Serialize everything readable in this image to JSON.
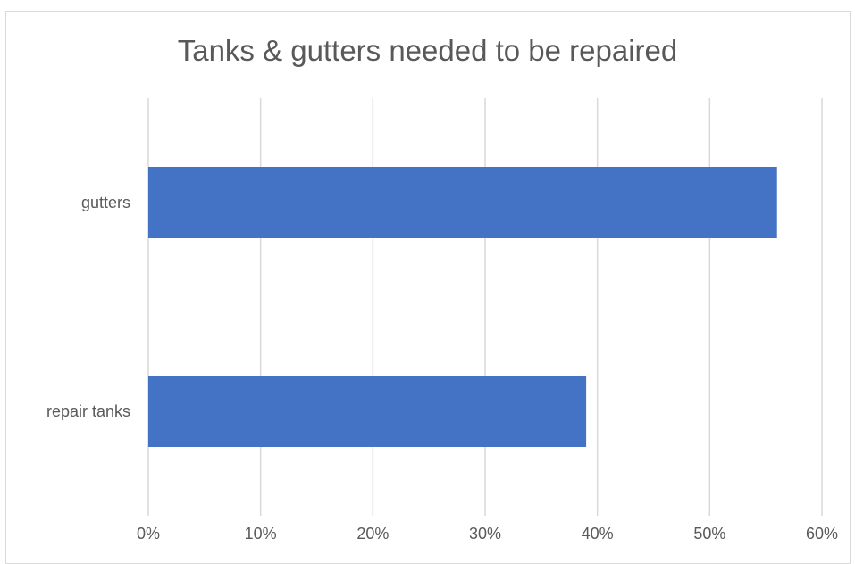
{
  "chart_data": {
    "type": "bar",
    "orientation": "horizontal",
    "title": "Tanks & gutters needed to be repaired",
    "categories": [
      "gutters",
      "repair tanks"
    ],
    "values": [
      56,
      39
    ],
    "value_unit": "%",
    "xlim": [
      0,
      60
    ],
    "x_ticks": [
      "0%",
      "10%",
      "20%",
      "30%",
      "40%",
      "50%",
      "60%"
    ],
    "xlabel": "",
    "ylabel": "",
    "grid": "vertical",
    "legend": "none",
    "bar_color": "#4472C4",
    "gridline_color": "#d9d9d9",
    "text_color": "#595959"
  }
}
